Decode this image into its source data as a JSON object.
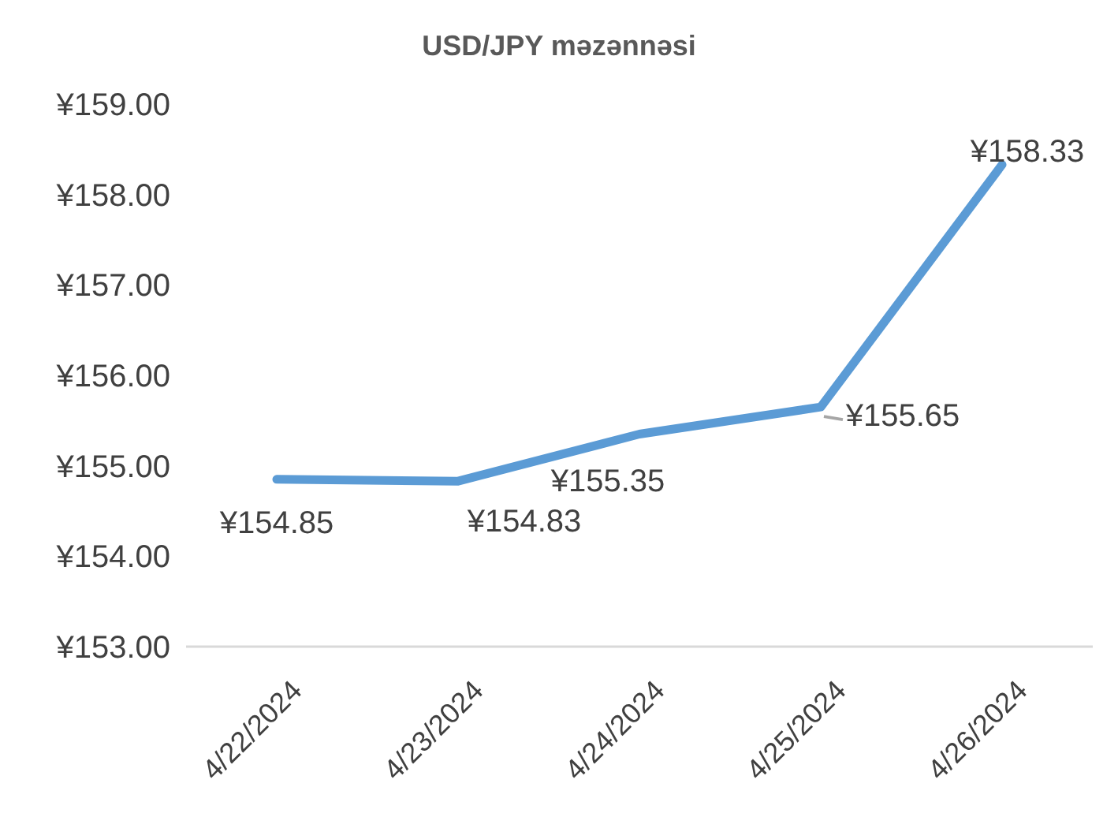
{
  "chart_data": {
    "type": "line",
    "title": "USD/JPY məzənnəsi",
    "categories": [
      "4/22/2024",
      "4/23/2024",
      "4/24/2024",
      "4/25/2024",
      "4/26/2024"
    ],
    "series": [
      {
        "color": "#5b9bd5",
        "values": [
          154.85,
          154.83,
          155.35,
          155.65,
          158.33
        ],
        "value_labels": [
          "¥154.85",
          "¥154.83",
          "¥155.35",
          "¥155.65",
          "¥158.33"
        ]
      }
    ],
    "ylim": [
      153,
      159
    ],
    "yticks": [
      {
        "value": 153,
        "label": "¥153.00"
      },
      {
        "value": 154,
        "label": "¥154.00"
      },
      {
        "value": 155,
        "label": "¥155.00"
      },
      {
        "value": 156,
        "label": "¥156.00"
      },
      {
        "value": 157,
        "label": "¥157.00"
      },
      {
        "value": 158,
        "label": "¥158.00"
      },
      {
        "value": 159,
        "label": "¥159.00"
      }
    ],
    "grid": false,
    "marker": "none",
    "line_style": "solid"
  }
}
